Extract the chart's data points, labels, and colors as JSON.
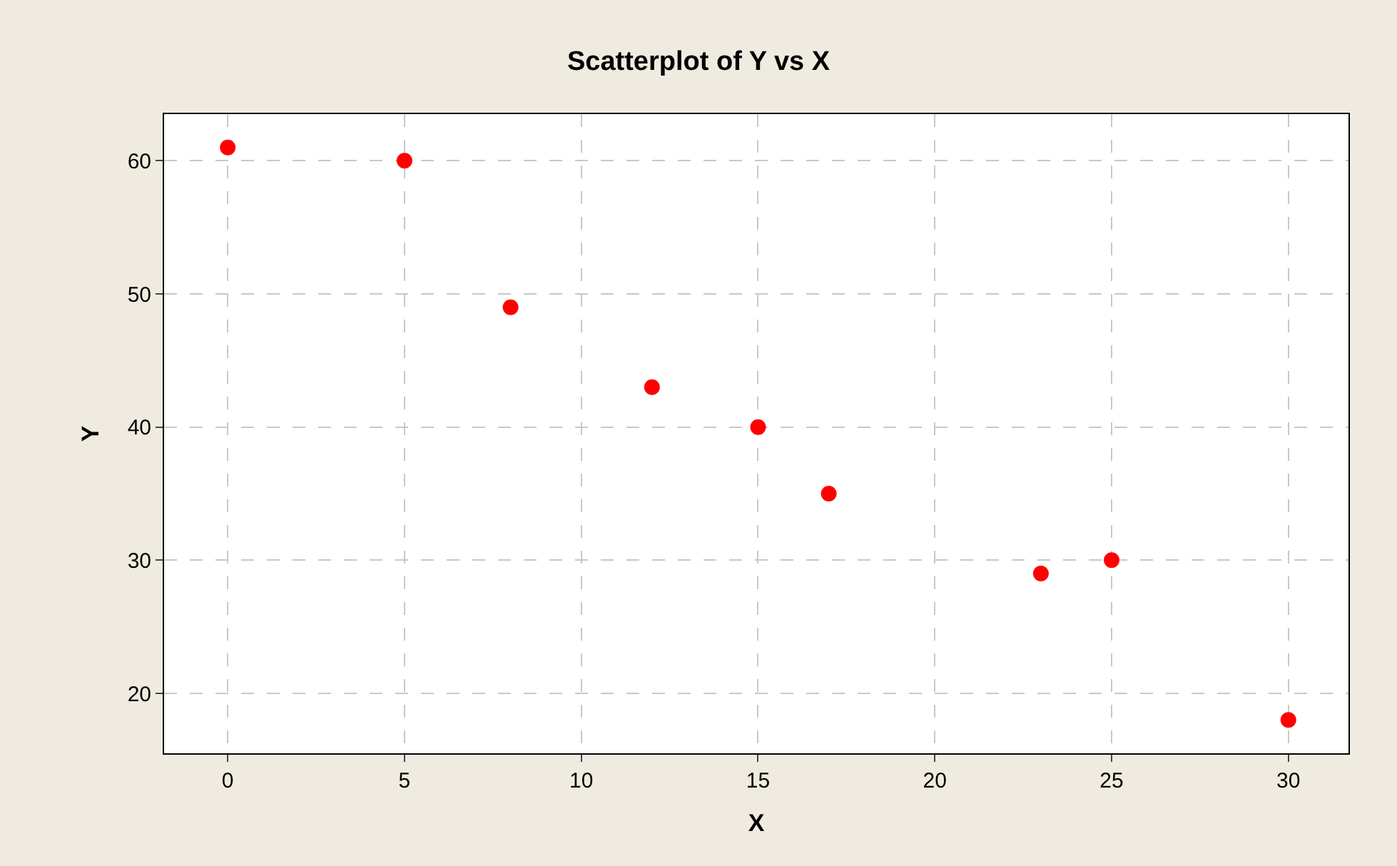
{
  "chart_data": {
    "type": "scatter",
    "title": "Scatterplot of Y vs X",
    "xlabel": "X",
    "ylabel": "Y",
    "x": [
      0,
      5,
      8,
      12,
      15,
      17,
      23,
      25,
      30
    ],
    "values": [
      61,
      60,
      49,
      43,
      40,
      35,
      29,
      30,
      18
    ],
    "color": "#ff0000",
    "marker": "circle",
    "xlim": [
      -1.8,
      31.7
    ],
    "ylim": [
      15.5,
      63.5
    ],
    "xticks": [
      0,
      5,
      10,
      15,
      20,
      25,
      30
    ],
    "yticks": [
      20,
      30,
      40,
      50,
      60
    ],
    "grid": true,
    "legend": false
  }
}
